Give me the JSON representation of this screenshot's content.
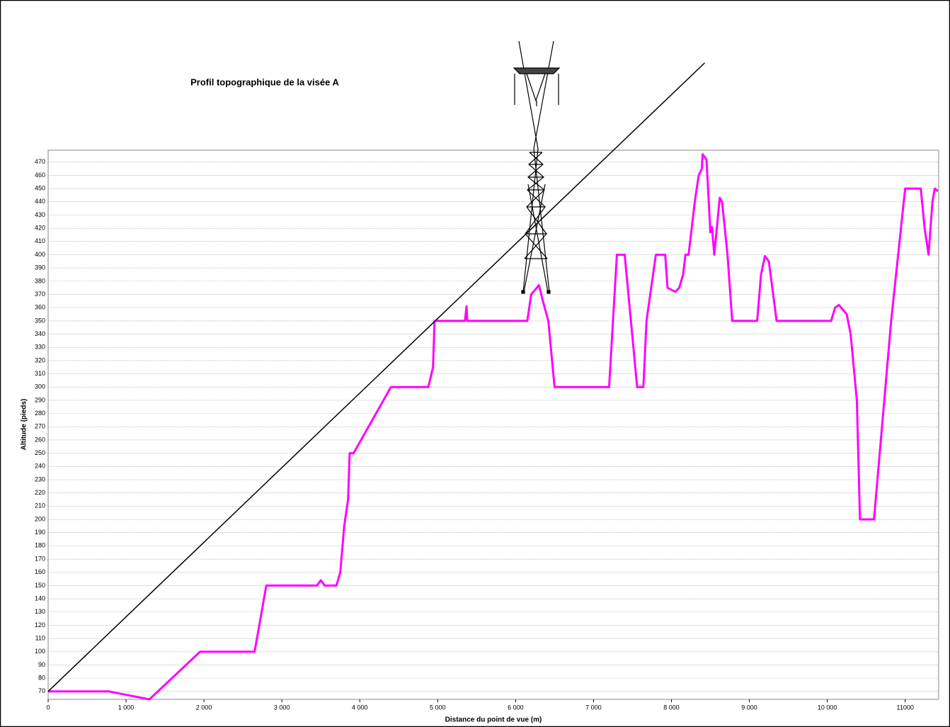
{
  "chart_data": {
    "type": "line",
    "title": "Profil topographique de la visée A",
    "xlabel": "Distance du point de vue  (m)",
    "ylabel": "Altitude  (pieds)",
    "grid": true,
    "xlim": [
      0,
      11430
    ],
    "ylim": [
      64,
      479
    ],
    "xticks": [
      0,
      {
        "value": 1000,
        "label": "1 000"
      },
      {
        "value": 2000,
        "label": "2 000"
      },
      {
        "value": 3000,
        "label": "3 000"
      },
      {
        "value": 4000,
        "label": "4 000"
      },
      {
        "value": 5000,
        "label": "5 000"
      },
      {
        "value": 6000,
        "label": "6 000"
      },
      {
        "value": 7000,
        "label": "7 000"
      },
      {
        "value": 8000,
        "label": "8 000"
      },
      {
        "value": 9000,
        "label": "9 000"
      },
      {
        "value": 10000,
        "label": "10 000"
      },
      11000
    ],
    "yticks": [
      70,
      80,
      90,
      100,
      110,
      120,
      130,
      140,
      150,
      160,
      170,
      180,
      190,
      200,
      210,
      220,
      230,
      240,
      250,
      260,
      270,
      280,
      290,
      300,
      310,
      320,
      330,
      340,
      350,
      360,
      370,
      380,
      390,
      400,
      410,
      420,
      430,
      440,
      450,
      460,
      470
    ],
    "series": [
      {
        "color": "#ff00ff",
        "width": 3,
        "x": [
          0,
          780,
          1300,
          1950,
          2650,
          2800,
          3450,
          3500,
          3550,
          3700,
          3750,
          3800,
          3850,
          3870,
          3920,
          4400,
          4880,
          4940,
          4960,
          5350,
          5370,
          5380,
          6150,
          6200,
          6300,
          6350,
          6420,
          6500,
          7200,
          7300,
          7400,
          7560,
          7640,
          7680,
          7800,
          7920,
          7950,
          8050,
          8100,
          8150,
          8180,
          8220,
          8300,
          8350,
          8390,
          8400,
          8450,
          8470,
          8500,
          8520,
          8550,
          8620,
          8650,
          8720,
          8780,
          9100,
          9150,
          9200,
          9250,
          9350,
          10050,
          10100,
          10150,
          10250,
          10300,
          10380,
          10420,
          10600,
          10820,
          11000,
          11200,
          11250,
          11300,
          11350,
          11380,
          11420
        ],
        "values": [
          70,
          70,
          64,
          100,
          100,
          150,
          150,
          154,
          150,
          150,
          160,
          195,
          215,
          250,
          250,
          300,
          300,
          315,
          350,
          350,
          361,
          350,
          350,
          370,
          377,
          365,
          350,
          300,
          300,
          400,
          400,
          300,
          300,
          350,
          400,
          400,
          375,
          372,
          375,
          385,
          400,
          400,
          440,
          460,
          465,
          476,
          472,
          450,
          417,
          421,
          400,
          443,
          440,
          400,
          350,
          350,
          385,
          399,
          395,
          350,
          350,
          360,
          362,
          355,
          340,
          290,
          200,
          200,
          350,
          450,
          450,
          420,
          400,
          440,
          450,
          448
        ]
      },
      {
        "color": "#000000",
        "width": 1.5,
        "x": [
          0,
          8427
        ],
        "values": [
          70,
          545
        ]
      }
    ]
  }
}
